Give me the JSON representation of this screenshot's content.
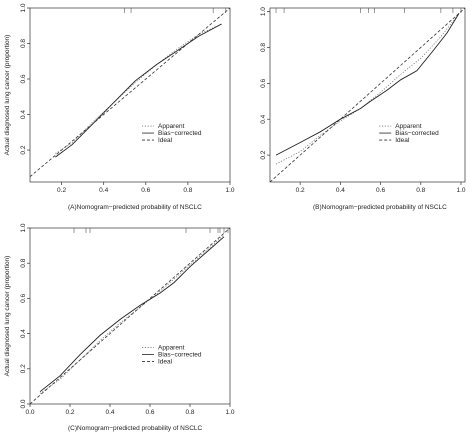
{
  "chart_data": [
    {
      "panel": "A",
      "type": "line",
      "xlabel": "(A)Nomogram−predicted probability of NSCLC",
      "ylabel": "Actual diagnosed lung cancer (proportion)",
      "xlim": [
        0.05,
        1.0
      ],
      "ylim": [
        0.02,
        1.0
      ],
      "xticks": [
        0.2,
        0.4,
        0.6,
        0.8,
        1.0
      ],
      "yticks": [
        0.2,
        0.4,
        0.6,
        0.8,
        1.0
      ],
      "xtick_labels": [
        "0.2",
        "0.4",
        "0.6",
        "0.8",
        "1.0"
      ],
      "ytick_labels": [
        "0.2",
        "0.4",
        "0.6",
        "0.8",
        "1.0"
      ],
      "legend_position": "bottom-right",
      "legend": [
        "Apparent",
        "Bias−corrected",
        "Ideal"
      ],
      "rug_x": [
        0.5,
        0.53,
        0.92,
        0.98
      ],
      "series": [
        {
          "name": "Apparent",
          "style": "dotted",
          "x": [
            0.17,
            0.25,
            0.35,
            0.45,
            0.55,
            0.65,
            0.75,
            0.85,
            0.96
          ],
          "y": [
            0.18,
            0.24,
            0.36,
            0.47,
            0.58,
            0.68,
            0.77,
            0.85,
            0.91
          ]
        },
        {
          "name": "Bias−corrected",
          "style": "solid",
          "x": [
            0.17,
            0.25,
            0.35,
            0.45,
            0.55,
            0.65,
            0.75,
            0.85,
            0.96
          ],
          "y": [
            0.16,
            0.23,
            0.35,
            0.47,
            0.59,
            0.68,
            0.76,
            0.84,
            0.91
          ]
        },
        {
          "name": "Ideal",
          "style": "dashed",
          "x": [
            0.05,
            1.0
          ],
          "y": [
            0.05,
            1.0
          ]
        }
      ]
    },
    {
      "panel": "B",
      "type": "line",
      "xlabel": "(B)Nomogram−predicted probability of NSCLC",
      "ylabel": "",
      "xlim": [
        0.05,
        1.02
      ],
      "ylim": [
        0.05,
        1.02
      ],
      "xticks": [
        0.2,
        0.4,
        0.6,
        0.8,
        1.0
      ],
      "yticks": [
        0.2,
        0.4,
        0.6,
        0.8,
        1.0
      ],
      "xtick_labels": [
        "0.2",
        "0.4",
        "0.6",
        "0.8",
        "1.0"
      ],
      "ytick_labels": [
        "0.2",
        "0.4",
        "0.6",
        "0.8",
        "1.0"
      ],
      "legend_position": "bottom-right",
      "legend": [
        "Apparent",
        "Bias−corrected",
        "Ideal"
      ],
      "rug_x": [
        0.08,
        0.12,
        0.5,
        0.54,
        0.57,
        0.72,
        0.9,
        0.96,
        1.0
      ],
      "series": [
        {
          "name": "Apparent",
          "style": "dotted",
          "x": [
            0.08,
            0.2,
            0.3,
            0.4,
            0.5,
            0.6,
            0.7,
            0.8,
            0.9,
            0.99
          ],
          "y": [
            0.15,
            0.22,
            0.31,
            0.39,
            0.46,
            0.55,
            0.65,
            0.74,
            0.86,
            0.99
          ]
        },
        {
          "name": "Bias−corrected",
          "style": "solid",
          "x": [
            0.08,
            0.2,
            0.3,
            0.4,
            0.5,
            0.55,
            0.63,
            0.7,
            0.78,
            0.86,
            0.93,
            0.99
          ],
          "y": [
            0.2,
            0.27,
            0.33,
            0.4,
            0.46,
            0.5,
            0.56,
            0.62,
            0.67,
            0.78,
            0.88,
            0.99
          ]
        },
        {
          "name": "Ideal",
          "style": "dashed",
          "x": [
            0.05,
            1.02
          ],
          "y": [
            0.05,
            1.02
          ]
        }
      ]
    },
    {
      "panel": "C",
      "type": "line",
      "xlabel": "(C)Nomogram−predicted probability of NSCLC",
      "ylabel": "Actual diagnosed lung cancer (proportion)",
      "xlim": [
        0.0,
        1.0
      ],
      "ylim": [
        0.0,
        1.0
      ],
      "xticks": [
        0.0,
        0.2,
        0.4,
        0.6,
        0.8,
        1.0
      ],
      "yticks": [
        0.0,
        0.2,
        0.4,
        0.6,
        0.8,
        1.0
      ],
      "xtick_labels": [
        "0.0",
        "0.2",
        "0.4",
        "0.6",
        "0.8",
        "1.0"
      ],
      "ytick_labels": [
        "0.0",
        "0.2",
        "0.4",
        "0.6",
        "0.8",
        "1.0"
      ],
      "legend_position": "bottom-right",
      "legend": [
        "Apparent",
        "Bias−corrected",
        "Ideal"
      ],
      "rug_x": [
        0.22,
        0.28,
        0.3,
        0.78,
        0.9,
        0.94,
        0.95,
        0.97,
        0.99
      ],
      "series": [
        {
          "name": "Apparent",
          "style": "dotted",
          "x": [
            0.05,
            0.15,
            0.25,
            0.35,
            0.45,
            0.55,
            0.65,
            0.75,
            0.85,
            0.97
          ],
          "y": [
            0.06,
            0.14,
            0.25,
            0.36,
            0.46,
            0.55,
            0.64,
            0.74,
            0.84,
            0.96
          ]
        },
        {
          "name": "Bias−corrected",
          "style": "solid",
          "x": [
            0.05,
            0.15,
            0.25,
            0.35,
            0.45,
            0.55,
            0.65,
            0.72,
            0.8,
            0.9,
            0.97
          ],
          "y": [
            0.07,
            0.16,
            0.28,
            0.39,
            0.48,
            0.56,
            0.63,
            0.69,
            0.78,
            0.88,
            0.95
          ]
        },
        {
          "name": "Ideal",
          "style": "dashed",
          "x": [
            0.0,
            1.0
          ],
          "y": [
            0.0,
            1.0
          ]
        }
      ]
    }
  ]
}
